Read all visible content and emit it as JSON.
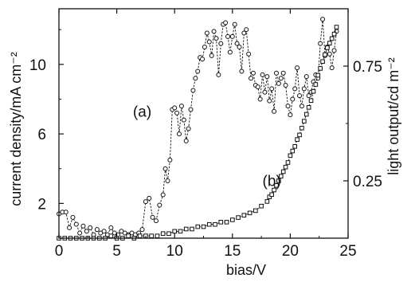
{
  "chart_data": {
    "type": "scatter",
    "xlabel": "bias/V",
    "ylabel_left": "current density/mA cm⁻²",
    "ylabel_right": "light output/cd m⁻²",
    "xlim": [
      0,
      25
    ],
    "ylim_left": [
      0,
      13.2
    ],
    "ylim_right": [
      0,
      1.0
    ],
    "x_ticks": [
      {
        "value": 0,
        "label": "0"
      },
      {
        "value": 5,
        "label": "5"
      },
      {
        "value": 10,
        "label": "10"
      },
      {
        "value": 15,
        "label": "15"
      },
      {
        "value": 20,
        "label": "20"
      },
      {
        "value": 25,
        "label": "25"
      }
    ],
    "y_ticks_left": [
      {
        "value": 2,
        "label": "2"
      },
      {
        "value": 6,
        "label": "6"
      },
      {
        "value": 10,
        "label": "10"
      }
    ],
    "y_ticks_right": [
      {
        "value": 0.25,
        "label": "0.25"
      },
      {
        "value": 0.75,
        "label": "0.75"
      }
    ],
    "annotations": [
      {
        "text": "(a)",
        "x": 8.0,
        "y": 7.0
      },
      {
        "text": "(b)",
        "x": 18.4,
        "y": 3.0
      }
    ],
    "series": [
      {
        "label": "(a)",
        "axis": "left",
        "marker": "circle",
        "line": "dashed",
        "x": [
          0.0,
          0.3,
          0.6,
          0.9,
          1.2,
          1.5,
          1.8,
          2.1,
          2.4,
          2.7,
          3.0,
          3.3,
          3.6,
          3.9,
          4.2,
          4.5,
          4.8,
          5.1,
          5.4,
          5.7,
          6.0,
          6.3,
          6.6,
          6.9,
          7.2,
          7.5,
          7.8,
          8.1,
          8.4,
          8.7,
          9.0,
          9.2,
          9.4,
          9.6,
          9.8,
          10.0,
          10.2,
          10.4,
          10.6,
          10.8,
          11.0,
          11.2,
          11.4,
          11.6,
          11.8,
          12.0,
          12.2,
          12.4,
          12.6,
          12.8,
          13.0,
          13.2,
          13.4,
          13.6,
          13.8,
          14.0,
          14.2,
          14.4,
          14.6,
          14.8,
          15.0,
          15.2,
          15.4,
          15.6,
          15.8,
          16.0,
          16.2,
          16.4,
          16.6,
          16.8,
          17.0,
          17.2,
          17.4,
          17.6,
          17.8,
          18.0,
          18.2,
          18.4,
          18.6,
          18.8,
          19.0,
          19.2,
          19.4,
          19.6,
          19.8,
          20.0,
          20.2,
          20.4,
          20.6,
          20.8,
          21.0,
          21.2,
          21.4,
          21.6,
          21.8,
          22.0,
          22.2,
          22.4,
          22.6,
          22.8,
          23.0,
          23.2,
          23.4,
          23.6,
          23.8,
          24.0
        ],
        "y": [
          1.4,
          1.5,
          1.5,
          0.6,
          1.2,
          0.8,
          0.3,
          0.7,
          0.4,
          0.6,
          0.2,
          0.5,
          0.3,
          0.4,
          0.2,
          0.6,
          0.3,
          0.2,
          0.4,
          0.3,
          0.2,
          0.3,
          0.2,
          0.3,
          0.5,
          2.1,
          2.3,
          1.2,
          1.0,
          1.9,
          2.5,
          4.0,
          3.3,
          4.5,
          7.4,
          7.5,
          7.2,
          6.0,
          7.6,
          6.8,
          5.6,
          6.3,
          7.4,
          8.5,
          9.2,
          9.6,
          10.4,
          10.3,
          11.0,
          11.8,
          11.3,
          10.5,
          11.9,
          11.5,
          9.4,
          11.2,
          12.3,
          12.4,
          11.6,
          10.7,
          11.6,
          12.3,
          11.2,
          11.0,
          9.6,
          11.8,
          12.0,
          10.6,
          9.2,
          9.5,
          8.8,
          8.7,
          8.0,
          9.4,
          8.4,
          9.3,
          7.9,
          8.6,
          7.3,
          9.5,
          8.9,
          9.2,
          9.5,
          8.8,
          7.6,
          7.1,
          8.0,
          8.6,
          9.8,
          8.2,
          7.6,
          8.6,
          9.3,
          8.2,
          8.4,
          9.0,
          9.4,
          9.2,
          11.2,
          12.6,
          10.5,
          11.0,
          10.6,
          9.8,
          10.8,
          11.9
        ]
      },
      {
        "label": "(b)",
        "axis": "right",
        "marker": "square",
        "line": "dashed",
        "x": [
          0.0,
          0.5,
          1.0,
          1.5,
          2.0,
          2.5,
          3.0,
          3.5,
          4.0,
          4.5,
          5.0,
          5.5,
          6.0,
          6.5,
          7.0,
          7.5,
          8.0,
          8.5,
          9.0,
          9.5,
          10.0,
          10.5,
          11.0,
          11.5,
          12.0,
          12.5,
          13.0,
          13.5,
          14.0,
          14.5,
          15.0,
          15.5,
          16.0,
          16.5,
          17.0,
          17.5,
          18.0,
          18.2,
          18.4,
          18.6,
          18.8,
          19.0,
          19.2,
          19.4,
          19.6,
          19.8,
          20.0,
          20.2,
          20.4,
          20.6,
          20.8,
          21.0,
          21.2,
          21.4,
          21.6,
          21.8,
          22.0,
          22.2,
          22.4,
          22.6,
          22.8,
          23.0,
          23.2,
          23.4,
          23.6,
          23.8,
          24.0
        ],
        "y": [
          0.0,
          0.0,
          0.0,
          0.0,
          0.0,
          0.0,
          0.0,
          0.0,
          0.0,
          0.01,
          0.0,
          0.0,
          0.01,
          0.0,
          0.01,
          0.01,
          0.01,
          0.01,
          0.02,
          0.02,
          0.03,
          0.03,
          0.04,
          0.04,
          0.05,
          0.05,
          0.06,
          0.06,
          0.07,
          0.07,
          0.08,
          0.09,
          0.1,
          0.11,
          0.12,
          0.14,
          0.16,
          0.18,
          0.19,
          0.21,
          0.23,
          0.25,
          0.27,
          0.29,
          0.31,
          0.33,
          0.36,
          0.38,
          0.4,
          0.43,
          0.45,
          0.48,
          0.51,
          0.54,
          0.57,
          0.6,
          0.64,
          0.67,
          0.71,
          0.74,
          0.77,
          0.8,
          0.83,
          0.85,
          0.87,
          0.89,
          0.92
        ]
      }
    ]
  }
}
